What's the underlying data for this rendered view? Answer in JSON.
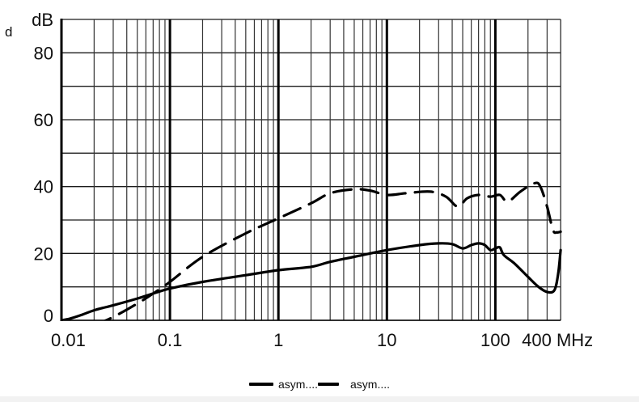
{
  "chart_data": {
    "type": "line",
    "title": "",
    "xlabel": "MHz",
    "ylabel": "dB",
    "corner_label": "d",
    "xscale": "log",
    "xlim": [
      0.01,
      400
    ],
    "ylim": [
      0,
      90
    ],
    "x_ticks": [
      {
        "value": 0.01,
        "label": "0.01"
      },
      {
        "value": 0.1,
        "label": "0.1"
      },
      {
        "value": 1,
        "label": "1"
      },
      {
        "value": 10,
        "label": "10"
      },
      {
        "value": 100,
        "label": "100"
      },
      {
        "value": 400,
        "label": "400 MHz"
      }
    ],
    "y_ticks": [
      {
        "value": 0,
        "label": "0"
      },
      {
        "value": 20,
        "label": "20"
      },
      {
        "value": 40,
        "label": "40"
      },
      {
        "value": 60,
        "label": "60"
      },
      {
        "value": 80,
        "label": "80"
      },
      {
        "value": 90,
        "label": "dB"
      }
    ],
    "grid": {
      "x_minor_log": true,
      "y_step": 10
    },
    "legend_position": "bottom-center",
    "series": [
      {
        "name": "asym....",
        "style": "solid",
        "color": "#000000",
        "points": [
          [
            0.01,
            0
          ],
          [
            0.012,
            0.5
          ],
          [
            0.015,
            1.5
          ],
          [
            0.02,
            3
          ],
          [
            0.03,
            4.5
          ],
          [
            0.05,
            6.5
          ],
          [
            0.07,
            8
          ],
          [
            0.1,
            9.5
          ],
          [
            0.2,
            11.5
          ],
          [
            0.5,
            13.5
          ],
          [
            1,
            15
          ],
          [
            2,
            16
          ],
          [
            3,
            17.5
          ],
          [
            5,
            19
          ],
          [
            10,
            21
          ],
          [
            20,
            22.5
          ],
          [
            30,
            23
          ],
          [
            40,
            22.8
          ],
          [
            50,
            21.5
          ],
          [
            60,
            22.5
          ],
          [
            70,
            23
          ],
          [
            80,
            22.5
          ],
          [
            90,
            21
          ],
          [
            100,
            21.5
          ],
          [
            110,
            21.8
          ],
          [
            120,
            19.5
          ],
          [
            150,
            17
          ],
          [
            200,
            13
          ],
          [
            250,
            10
          ],
          [
            300,
            8.5
          ],
          [
            350,
            9
          ],
          [
            380,
            14
          ],
          [
            400,
            21
          ]
        ]
      },
      {
        "name": "asym....",
        "style": "dashed",
        "color": "#000000",
        "points": [
          [
            0.02,
            -1.5
          ],
          [
            0.03,
            1
          ],
          [
            0.05,
            5
          ],
          [
            0.07,
            8
          ],
          [
            0.1,
            11.5
          ],
          [
            0.2,
            19
          ],
          [
            0.5,
            26
          ],
          [
            1,
            30.5
          ],
          [
            2,
            35
          ],
          [
            3,
            38
          ],
          [
            5,
            39.2
          ],
          [
            7,
            38.8
          ],
          [
            10,
            37.5
          ],
          [
            15,
            38
          ],
          [
            25,
            38.5
          ],
          [
            35,
            37
          ],
          [
            45,
            34
          ],
          [
            55,
            36.5
          ],
          [
            70,
            37.5
          ],
          [
            90,
            37
          ],
          [
            110,
            37.5
          ],
          [
            130,
            35.5
          ],
          [
            170,
            38.5
          ],
          [
            230,
            41
          ],
          [
            260,
            40
          ],
          [
            300,
            34
          ],
          [
            340,
            27
          ],
          [
            370,
            26.3
          ],
          [
            400,
            26.5
          ]
        ]
      }
    ]
  },
  "legend": {
    "items": [
      {
        "label": "asym....",
        "style": "solid"
      },
      {
        "label": "asym....",
        "style": "dashed"
      }
    ]
  }
}
